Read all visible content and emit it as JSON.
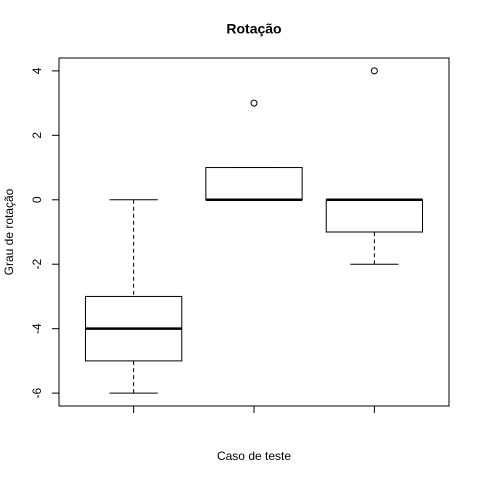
{
  "chart_data": {
    "type": "boxplot",
    "title": "Rotação",
    "x_label": "Caso de teste",
    "y_label": "Grau de rotação",
    "categories": [
      null,
      null,
      null
    ],
    "boxes": [
      {
        "whislo": -6,
        "q1": -5,
        "med": -4,
        "q3": -3,
        "whishi": 0
      },
      {
        "whislo": 0,
        "q1": 0,
        "med": 0,
        "q3": 1,
        "whishi": 1,
        "outliers": [
          3
        ]
      },
      {
        "whislo": -2,
        "q1": -1,
        "med": 0,
        "q3": 0,
        "whishi": 0,
        "outliers": [
          4
        ]
      }
    ],
    "color": "#000000",
    "ylim": [
      -6.4,
      4.4
    ],
    "yticks": [
      -6,
      -4,
      -2,
      0,
      2,
      4
    ]
  }
}
